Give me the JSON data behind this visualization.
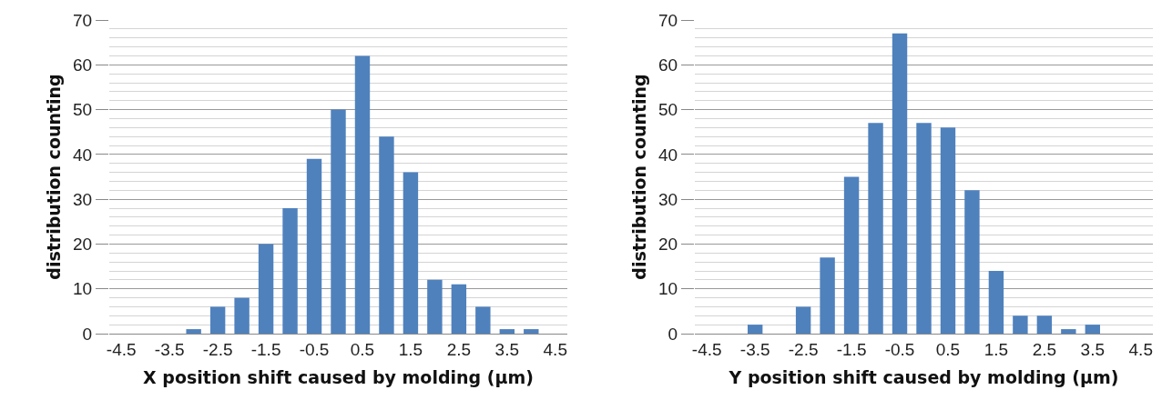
{
  "chart_data": [
    {
      "type": "bar",
      "xlabel": "X position shift caused by molding (µm)",
      "ylabel": "distribution counting",
      "categories": [
        "-4.5",
        null,
        "-3.5",
        null,
        "-2.5",
        null,
        "-1.5",
        null,
        "-0.5",
        null,
        "0.5",
        null,
        "1.5",
        null,
        "2.5",
        null,
        "3.5",
        null,
        "4.5"
      ],
      "values": [
        0,
        0,
        0,
        1,
        6,
        8,
        20,
        28,
        39,
        50,
        62,
        44,
        36,
        12,
        11,
        6,
        1,
        1,
        0
      ],
      "color": "#4f81bd",
      "ylim": [
        0,
        70
      ],
      "yticks": [
        0,
        10,
        20,
        30,
        40,
        50,
        60,
        70
      ],
      "grid": "y",
      "legend": false
    },
    {
      "type": "bar",
      "xlabel": "Y position shift caused by molding (µm)",
      "ylabel": "distribution counting",
      "categories": [
        "-4.5",
        null,
        "-3.5",
        null,
        "-2.5",
        null,
        "-1.5",
        null,
        "-0.5",
        null,
        "0.5",
        null,
        "1.5",
        null,
        "2.5",
        null,
        "3.5",
        null,
        "4.5"
      ],
      "values": [
        0,
        0,
        2,
        0,
        6,
        17,
        35,
        47,
        67,
        47,
        46,
        32,
        14,
        4,
        4,
        1,
        2,
        0,
        0
      ],
      "color": "#4f81bd",
      "ylim": [
        0,
        70
      ],
      "yticks": [
        0,
        10,
        20,
        30,
        40,
        50,
        60,
        70
      ],
      "grid": "y",
      "legend": false
    }
  ]
}
